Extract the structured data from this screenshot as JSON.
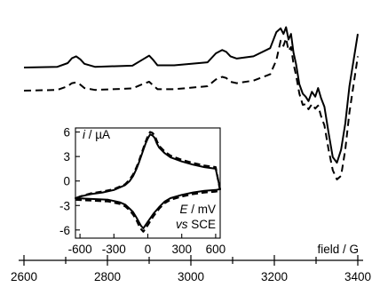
{
  "chart_data": [
    {
      "type": "line",
      "title": "",
      "xlabel": "field / G",
      "ylabel": "",
      "xlim": [
        2600,
        3400
      ],
      "x_ticks": [
        2600,
        2800,
        3000,
        3200,
        3400
      ],
      "x_tick_labels": [
        "2600",
        "2800",
        "3000",
        "3200",
        "3400"
      ],
      "y_axis_shown": false,
      "grid": false,
      "series": [
        {
          "style": "solid",
          "x": [
            2600,
            2680,
            2705,
            2715,
            2725,
            2735,
            2745,
            2770,
            2860,
            2885,
            2900,
            2910,
            2920,
            2960,
            3040,
            3060,
            3075,
            3085,
            3095,
            3110,
            3150,
            3190,
            3205,
            3215,
            3222,
            3228,
            3234,
            3240,
            3246,
            3252,
            3260,
            3268,
            3275,
            3282,
            3290,
            3298,
            3305,
            3312,
            3320,
            3330,
            3340,
            3350,
            3360,
            3370,
            3380,
            3400
          ],
          "y": [
            0.0,
            0.02,
            0.12,
            0.25,
            0.3,
            0.22,
            0.1,
            0.02,
            0.05,
            0.22,
            0.32,
            0.2,
            0.06,
            0.06,
            0.14,
            0.38,
            0.47,
            0.42,
            0.3,
            0.24,
            0.3,
            0.52,
            0.95,
            1.05,
            0.9,
            1.08,
            0.75,
            0.9,
            0.4,
            0.1,
            -0.45,
            -0.7,
            -0.78,
            -0.9,
            -0.65,
            -0.78,
            -0.55,
            -0.82,
            -1.05,
            -1.75,
            -2.4,
            -2.55,
            -2.2,
            -1.5,
            -0.5,
            0.9
          ]
        },
        {
          "style": "dashed",
          "x": [
            2600,
            2680,
            2705,
            2715,
            2725,
            2735,
            2745,
            2770,
            2860,
            2885,
            2900,
            2910,
            2920,
            2960,
            3040,
            3060,
            3075,
            3085,
            3095,
            3110,
            3150,
            3190,
            3205,
            3215,
            3222,
            3228,
            3234,
            3240,
            3246,
            3252,
            3260,
            3268,
            3275,
            3282,
            3290,
            3298,
            3305,
            3312,
            3320,
            3330,
            3340,
            3350,
            3360,
            3370,
            3380,
            3400
          ],
          "y": [
            -0.62,
            -0.6,
            -0.5,
            -0.42,
            -0.4,
            -0.46,
            -0.55,
            -0.6,
            -0.56,
            -0.44,
            -0.38,
            -0.48,
            -0.58,
            -0.58,
            -0.5,
            -0.32,
            -0.25,
            -0.28,
            -0.38,
            -0.42,
            -0.35,
            -0.18,
            0.2,
            0.72,
            0.58,
            0.78,
            0.45,
            0.55,
            0.1,
            -0.2,
            -0.7,
            -1.0,
            -0.98,
            -1.12,
            -0.98,
            -1.1,
            -1.02,
            -1.3,
            -1.55,
            -2.2,
            -2.75,
            -3.0,
            -2.9,
            -2.2,
            -1.2,
            0.3
          ]
        }
      ]
    },
    {
      "type": "line",
      "title": "",
      "xlabel_parts": {
        "symbol": "E",
        "unit": " / mV",
        "ref_prefix": "vs",
        "ref": " SCE"
      },
      "ylabel_parts": {
        "symbol": "i",
        "unit": " / µA"
      },
      "xlim": [
        -640,
        640
      ],
      "ylim": [
        -7,
        6.5
      ],
      "x_ticks": [
        -600,
        -300,
        0,
        300,
        600
      ],
      "x_tick_labels": [
        "-600",
        "-300",
        "0",
        "300",
        "600"
      ],
      "y_ticks": [
        6,
        3,
        0,
        -3,
        -6
      ],
      "y_tick_labels": [
        "6",
        "3",
        "0",
        "-3",
        "-6"
      ],
      "grid": false,
      "series": [
        {
          "style": "solid",
          "x": [
            -640,
            -500,
            -350,
            -250,
            -200,
            -160,
            -130,
            -100,
            -80,
            -60,
            -40,
            0,
            50,
            100,
            150,
            200,
            300,
            400,
            500,
            600,
            640,
            600,
            500,
            400,
            300,
            200,
            150,
            100,
            80,
            60,
            40,
            20,
            0,
            -20,
            -40,
            -60,
            -80,
            -100,
            -130,
            -160,
            -200,
            -300,
            -400,
            -500,
            -600,
            -640
          ],
          "y": [
            -2.1,
            -2.2,
            -2.3,
            -2.6,
            -2.9,
            -3.4,
            -3.8,
            -4.5,
            -5.0,
            -5.5,
            -5.8,
            -5.0,
            -4.0,
            -3.2,
            -2.5,
            -2.1,
            -1.7,
            -1.4,
            -1.2,
            -1.1,
            -1.0,
            1.5,
            1.7,
            2.0,
            2.4,
            2.9,
            3.4,
            4.1,
            4.6,
            5.3,
            5.6,
            5.7,
            5.2,
            4.6,
            3.8,
            3.0,
            2.2,
            1.5,
            0.6,
            0.0,
            -0.5,
            -1.1,
            -1.4,
            -1.6,
            -1.9,
            -2.1
          ]
        },
        {
          "style": "dashed",
          "x": [
            -640,
            -500,
            -350,
            -250,
            -200,
            -160,
            -130,
            -100,
            -80,
            -60,
            -40,
            0,
            50,
            100,
            150,
            200,
            300,
            400,
            500,
            600,
            640,
            600,
            500,
            400,
            300,
            200,
            150,
            100,
            80,
            60,
            40,
            20,
            0,
            -20,
            -40,
            -60,
            -80,
            -100,
            -130,
            -160,
            -200,
            -300,
            -400,
            -500,
            -600,
            -640
          ],
          "y": [
            -2.3,
            -2.4,
            -2.5,
            -2.8,
            -3.1,
            -3.6,
            -4.1,
            -4.8,
            -5.4,
            -5.9,
            -6.2,
            -5.4,
            -4.3,
            -3.4,
            -2.7,
            -2.3,
            -1.9,
            -1.6,
            -1.4,
            -1.3,
            -1.2,
            1.7,
            1.9,
            2.2,
            2.6,
            3.1,
            3.6,
            4.3,
            4.9,
            5.6,
            5.9,
            6.0,
            5.5,
            4.8,
            4.0,
            3.2,
            2.4,
            1.7,
            0.8,
            0.2,
            -0.4,
            -1.0,
            -1.3,
            -1.5,
            -1.9,
            -2.3
          ]
        }
      ]
    }
  ]
}
